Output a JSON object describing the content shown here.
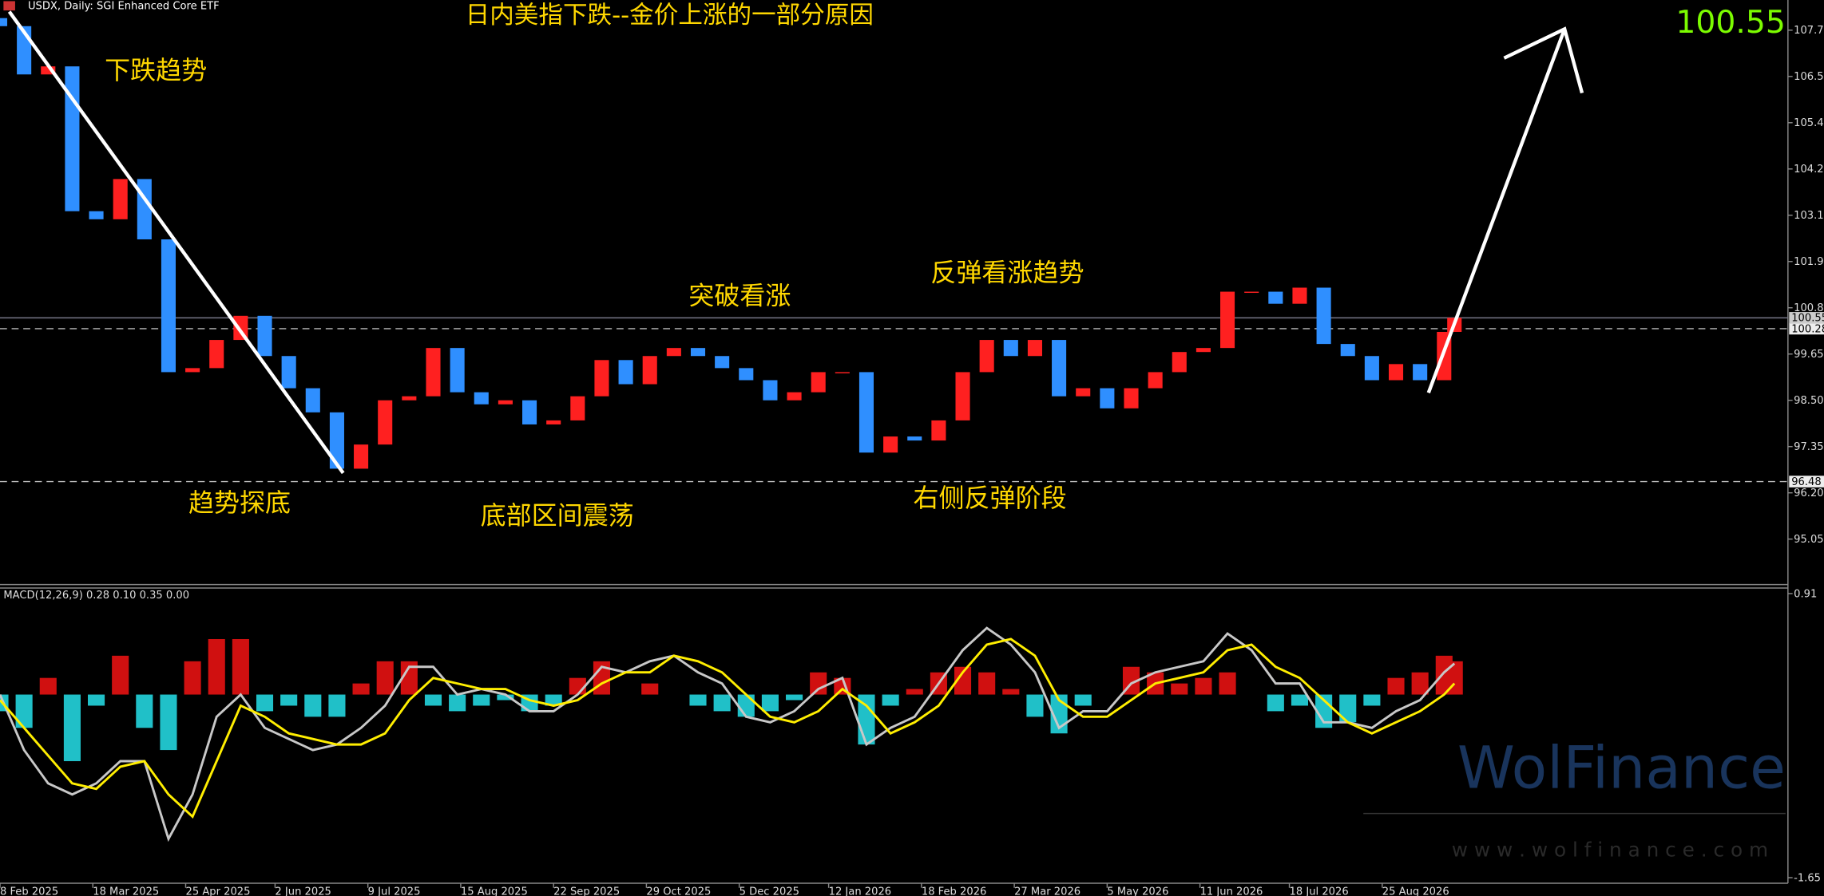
{
  "chart_data": [
    {
      "type": "candlestick",
      "header": "USDX, Daily:  SGI Enhanced Core ETF",
      "title": "日内美指下跌--金价上涨的一部分原因",
      "annotations": [
        "下跌趋势",
        "趋势探底",
        "底部区间震荡",
        "突破看涨",
        "反弹看涨趋势",
        "右侧反弹阶段"
      ],
      "current_price": 100.55,
      "levels": [
        100.28,
        96.48
      ],
      "up_color": "#ff2020",
      "down_color": "#2f8fff",
      "x": [
        0,
        7,
        14,
        21,
        28,
        35,
        42,
        49,
        56,
        63,
        70,
        77,
        84,
        91,
        98,
        105,
        112,
        119,
        126,
        133,
        140,
        147,
        154,
        161,
        168,
        175,
        182,
        189,
        196,
        203,
        210,
        217,
        224,
        231,
        238,
        245,
        252,
        259,
        266,
        273,
        280,
        287,
        294,
        301,
        308,
        315,
        322,
        329,
        336,
        343,
        350,
        357,
        364,
        371,
        378,
        385,
        392,
        399,
        406,
        413,
        420,
        423
      ],
      "open": [
        108.0,
        107.8,
        106.6,
        106.8,
        103.2,
        103.0,
        104.0,
        102.5,
        99.2,
        99.3,
        100.0,
        100.6,
        99.6,
        98.8,
        98.2,
        96.8,
        97.4,
        98.5,
        98.6,
        99.8,
        98.7,
        98.4,
        98.5,
        97.9,
        98.0,
        98.6,
        99.5,
        98.9,
        99.6,
        99.8,
        99.6,
        99.3,
        99.0,
        98.5,
        98.7,
        99.2,
        99.2,
        97.2,
        97.6,
        97.5,
        98.0,
        99.2,
        100.0,
        99.6,
        100.0,
        98.6,
        98.8,
        98.3,
        98.8,
        99.2,
        99.7,
        99.8,
        101.2,
        101.2,
        100.9,
        101.3,
        99.9,
        99.6,
        99.0,
        99.4,
        99.0,
        100.2
      ],
      "close": [
        107.8,
        106.6,
        106.8,
        103.2,
        103.0,
        104.0,
        102.5,
        99.2,
        99.3,
        100.0,
        100.6,
        99.6,
        98.8,
        98.2,
        96.8,
        97.4,
        98.5,
        98.6,
        99.8,
        98.7,
        98.4,
        98.5,
        97.9,
        98.0,
        98.6,
        99.5,
        98.9,
        99.6,
        99.8,
        99.6,
        99.3,
        99.0,
        98.5,
        98.7,
        99.2,
        99.2,
        97.2,
        97.6,
        97.5,
        98.0,
        99.2,
        100.0,
        99.6,
        100.0,
        98.6,
        98.8,
        98.3,
        98.8,
        99.2,
        99.7,
        99.8,
        101.2,
        101.2,
        100.9,
        101.3,
        99.9,
        99.6,
        99.0,
        99.4,
        99.0,
        100.2,
        100.55
      ],
      "xlim": [
        0,
        520
      ],
      "xticks": [
        {
          "value": 0,
          "label": "8 Feb 2025"
        },
        {
          "value": 27,
          "label": "18 Mar 2025"
        },
        {
          "value": 54,
          "label": "25 Apr 2025"
        },
        {
          "value": 80,
          "label": "2 Jun 2025"
        },
        {
          "value": 107,
          "label": "9 Jul 2025"
        },
        {
          "value": 134,
          "label": "15 Aug 2025"
        },
        {
          "value": 161,
          "label": "22 Sep 2025"
        },
        {
          "value": 188,
          "label": "29 Oct 2025"
        },
        {
          "value": 215,
          "label": "5 Dec 2025"
        },
        {
          "value": 241,
          "label": "12 Jan 2026"
        },
        {
          "value": 268,
          "label": "18 Feb 2026"
        },
        {
          "value": 295,
          "label": "27 Mar 2026"
        },
        {
          "value": 322,
          "label": "5 May 2026"
        },
        {
          "value": 349,
          "label": "11 Jun 2026"
        },
        {
          "value": 375,
          "label": "18 Jul 2026"
        },
        {
          "value": 402,
          "label": "25 Aug 2026"
        }
      ],
      "ylim": [
        93.92,
        108.45
      ],
      "yticks": [
        {
          "value": 107.7,
          "label": "107.70"
        },
        {
          "value": 106.55,
          "label": "106.55"
        },
        {
          "value": 105.4,
          "label": "105.40"
        },
        {
          "value": 104.25,
          "label": "104.25"
        },
        {
          "value": 103.1,
          "label": "103.10"
        },
        {
          "value": 101.95,
          "label": "101.95"
        },
        {
          "value": 100.8,
          "label": "100.80"
        },
        {
          "value": 99.65,
          "label": "99.65"
        },
        {
          "value": 98.5,
          "label": "98.50"
        },
        {
          "value": 97.35,
          "label": "97.35"
        },
        {
          "value": 96.2,
          "label": "96.20"
        },
        {
          "value": 95.05,
          "label": "95.05"
        }
      ]
    },
    {
      "type": "macd",
      "indicator_label": "MACD(12,26,9) 0.28 0.10 0.35 0.00",
      "ylim": [
        -1.7,
        0.96
      ],
      "yticks": [
        0.91,
        -1.65
      ],
      "histogram": {
        "up_color": "#d01010",
        "down_color": "#20c0c8",
        "values": [
          -0.15,
          -0.3,
          0.15,
          -0.6,
          -0.1,
          0.35,
          -0.3,
          -0.5,
          0.3,
          0.5,
          0.5,
          -0.15,
          -0.1,
          -0.2,
          -0.2,
          0.1,
          0.3,
          0.3,
          -0.1,
          -0.15,
          -0.1,
          -0.05,
          -0.15,
          -0.1,
          0.15,
          0.3,
          0.0,
          0.1,
          0.0,
          -0.1,
          -0.15,
          -0.2,
          -0.15,
          -0.05,
          0.2,
          0.15,
          -0.45,
          -0.1,
          0.05,
          0.2,
          0.25,
          0.2,
          0.05,
          -0.2,
          -0.35,
          -0.1,
          0.0,
          0.25,
          0.2,
          0.1,
          0.15,
          0.2,
          0.0,
          -0.15,
          -0.1,
          -0.3,
          -0.25,
          -0.1,
          0.15,
          0.2,
          0.35,
          0.3
        ]
      },
      "series": [
        {
          "color": "#c8c8c8",
          "values": [
            0,
            -0.5,
            -0.8,
            -0.9,
            -0.8,
            -0.6,
            -0.6,
            -1.3,
            -0.9,
            -0.2,
            0.0,
            -0.3,
            -0.4,
            -0.5,
            -0.45,
            -0.3,
            -0.1,
            0.25,
            0.25,
            0.0,
            0.05,
            0.0,
            -0.15,
            -0.15,
            0.0,
            0.25,
            0.2,
            0.3,
            0.35,
            0.2,
            0.1,
            -0.2,
            -0.25,
            -0.15,
            0.05,
            0.15,
            -0.45,
            -0.3,
            -0.2,
            0.1,
            0.4,
            0.6,
            0.45,
            0.2,
            -0.3,
            -0.15,
            -0.15,
            0.1,
            0.2,
            0.25,
            0.3,
            0.55,
            0.4,
            0.1,
            0.1,
            -0.25,
            -0.25,
            -0.3,
            -0.15,
            -0.05,
            0.2,
            0.28
          ]
        },
        {
          "color": "#ffee00",
          "values": [
            -0.05,
            -0.3,
            -0.55,
            -0.8,
            -0.85,
            -0.65,
            -0.6,
            -0.9,
            -1.1,
            -0.6,
            -0.1,
            -0.2,
            -0.35,
            -0.4,
            -0.45,
            -0.45,
            -0.35,
            -0.05,
            0.15,
            0.1,
            0.05,
            0.05,
            -0.05,
            -0.1,
            -0.05,
            0.1,
            0.2,
            0.2,
            0.35,
            0.3,
            0.2,
            0.0,
            -0.2,
            -0.25,
            -0.15,
            0.05,
            -0.1,
            -0.35,
            -0.25,
            -0.1,
            0.2,
            0.45,
            0.5,
            0.35,
            -0.05,
            -0.2,
            -0.2,
            -0.05,
            0.1,
            0.15,
            0.2,
            0.4,
            0.45,
            0.25,
            0.15,
            -0.05,
            -0.25,
            -0.35,
            -0.25,
            -0.15,
            0.0,
            0.1
          ]
        }
      ]
    }
  ],
  "watermark": {
    "brand": "WolFinance",
    "url": "w w w . w o l f i n a n c e . c o m"
  }
}
